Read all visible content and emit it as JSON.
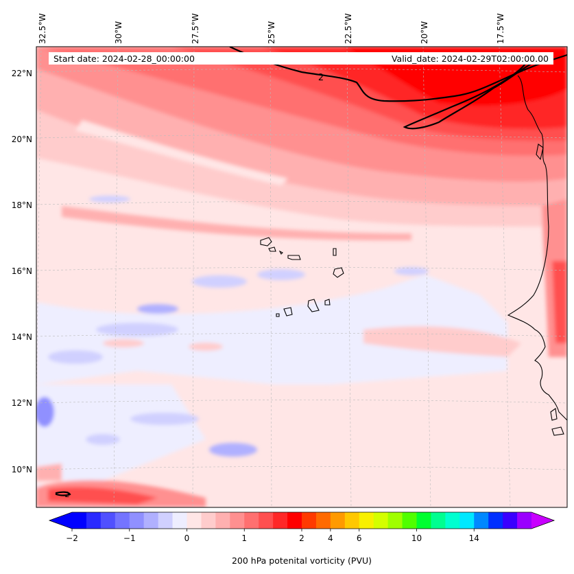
{
  "header": {
    "start_date": "Start date: 2024-02-28_00:00:00",
    "valid_date": "Valid_date: 2024-02-29T02:00:00.00"
  },
  "axes": {
    "longitude_labels": [
      "32.5°W",
      "30°W",
      "27.5°W",
      "25°W",
      "22.5°W",
      "20°W",
      "17.5°W"
    ],
    "latitude_labels": [
      "22°N",
      "20°N",
      "18°N",
      "16°N",
      "14°N",
      "12°N",
      "10°N"
    ]
  },
  "contour": {
    "label": "2",
    "color": "#000000"
  },
  "colorbar": {
    "title": "200 hPa potenital vorticity (PVU)",
    "tick_labels": [
      "−2",
      "−1",
      "0",
      "1",
      "2",
      "4",
      "6",
      "10",
      "14"
    ],
    "colors": [
      "#0000ff",
      "#2a2aff",
      "#5050ff",
      "#7474ff",
      "#9090ff",
      "#b0b0ff",
      "#d0d0ff",
      "#eeeeff",
      "#ffe6e6",
      "#ffcccc",
      "#ffb0b0",
      "#ff9090",
      "#ff7070",
      "#ff5050",
      "#ff2828",
      "#ff0000",
      "#ff3a00",
      "#ff6a00",
      "#ff9a00",
      "#ffc800",
      "#f8f000",
      "#d4ff00",
      "#a0ff00",
      "#50ff00",
      "#00ff30",
      "#00ff90",
      "#00ffd0",
      "#00e8ff",
      "#0088ff",
      "#0030ff",
      "#3a00ff",
      "#9a00ff"
    ],
    "under_color": "#0000ff",
    "over_color": "#c800ff"
  }
}
